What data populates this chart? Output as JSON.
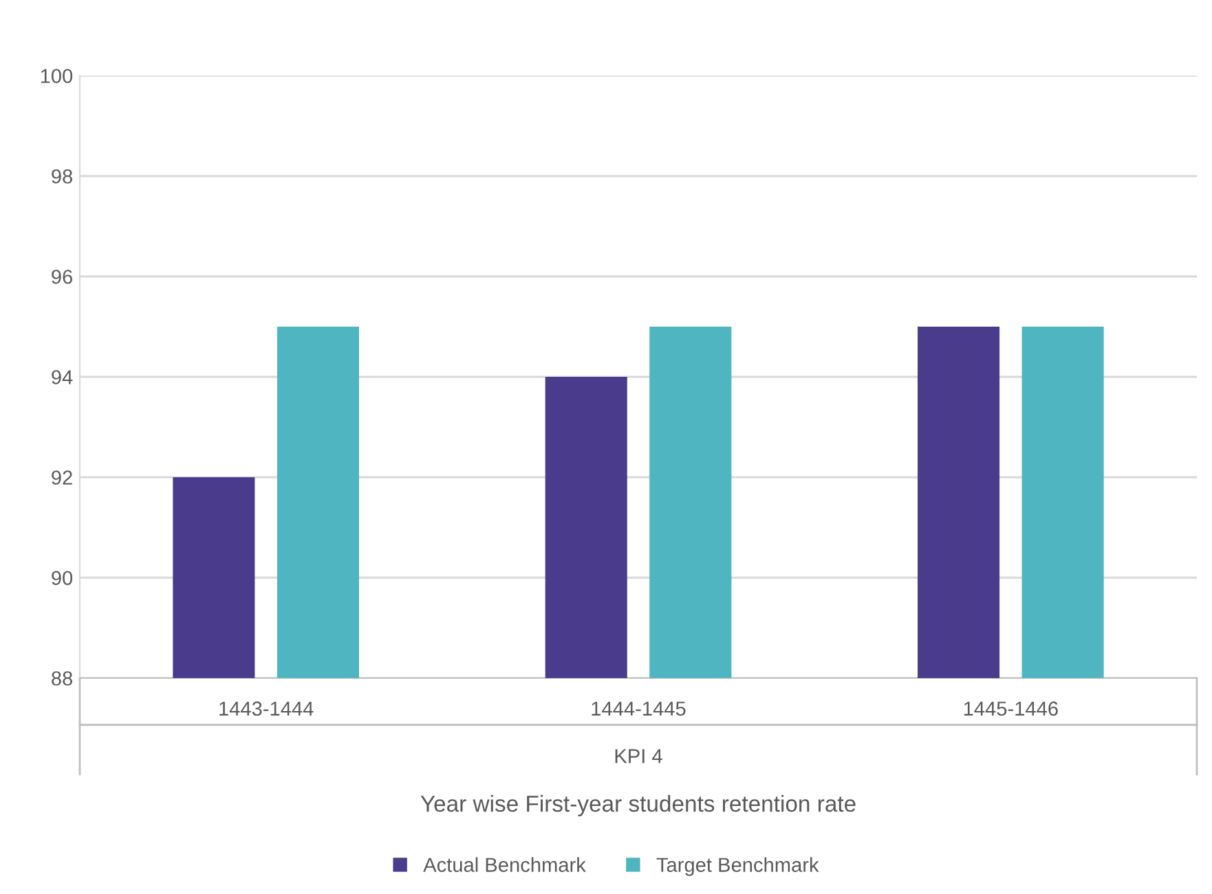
{
  "chart_data": {
    "type": "bar",
    "categories": [
      "1443-1444",
      "1444-1445",
      "1445-1446"
    ],
    "series": [
      {
        "name": "Actual Benchmark",
        "color": "#4b3b8c",
        "values": [
          92,
          94,
          95
        ]
      },
      {
        "name": "Target Benchmark",
        "color": "#4fb5c1",
        "values": [
          95,
          95,
          95
        ]
      }
    ],
    "xlabel": "Year wise First-year students retention rate",
    "annotations": [
      "KPI 4"
    ],
    "ylim": [
      88,
      100
    ],
    "yticks": [
      88,
      90,
      92,
      94,
      96,
      98,
      100
    ],
    "grid": "y",
    "legend": "bottom"
  }
}
